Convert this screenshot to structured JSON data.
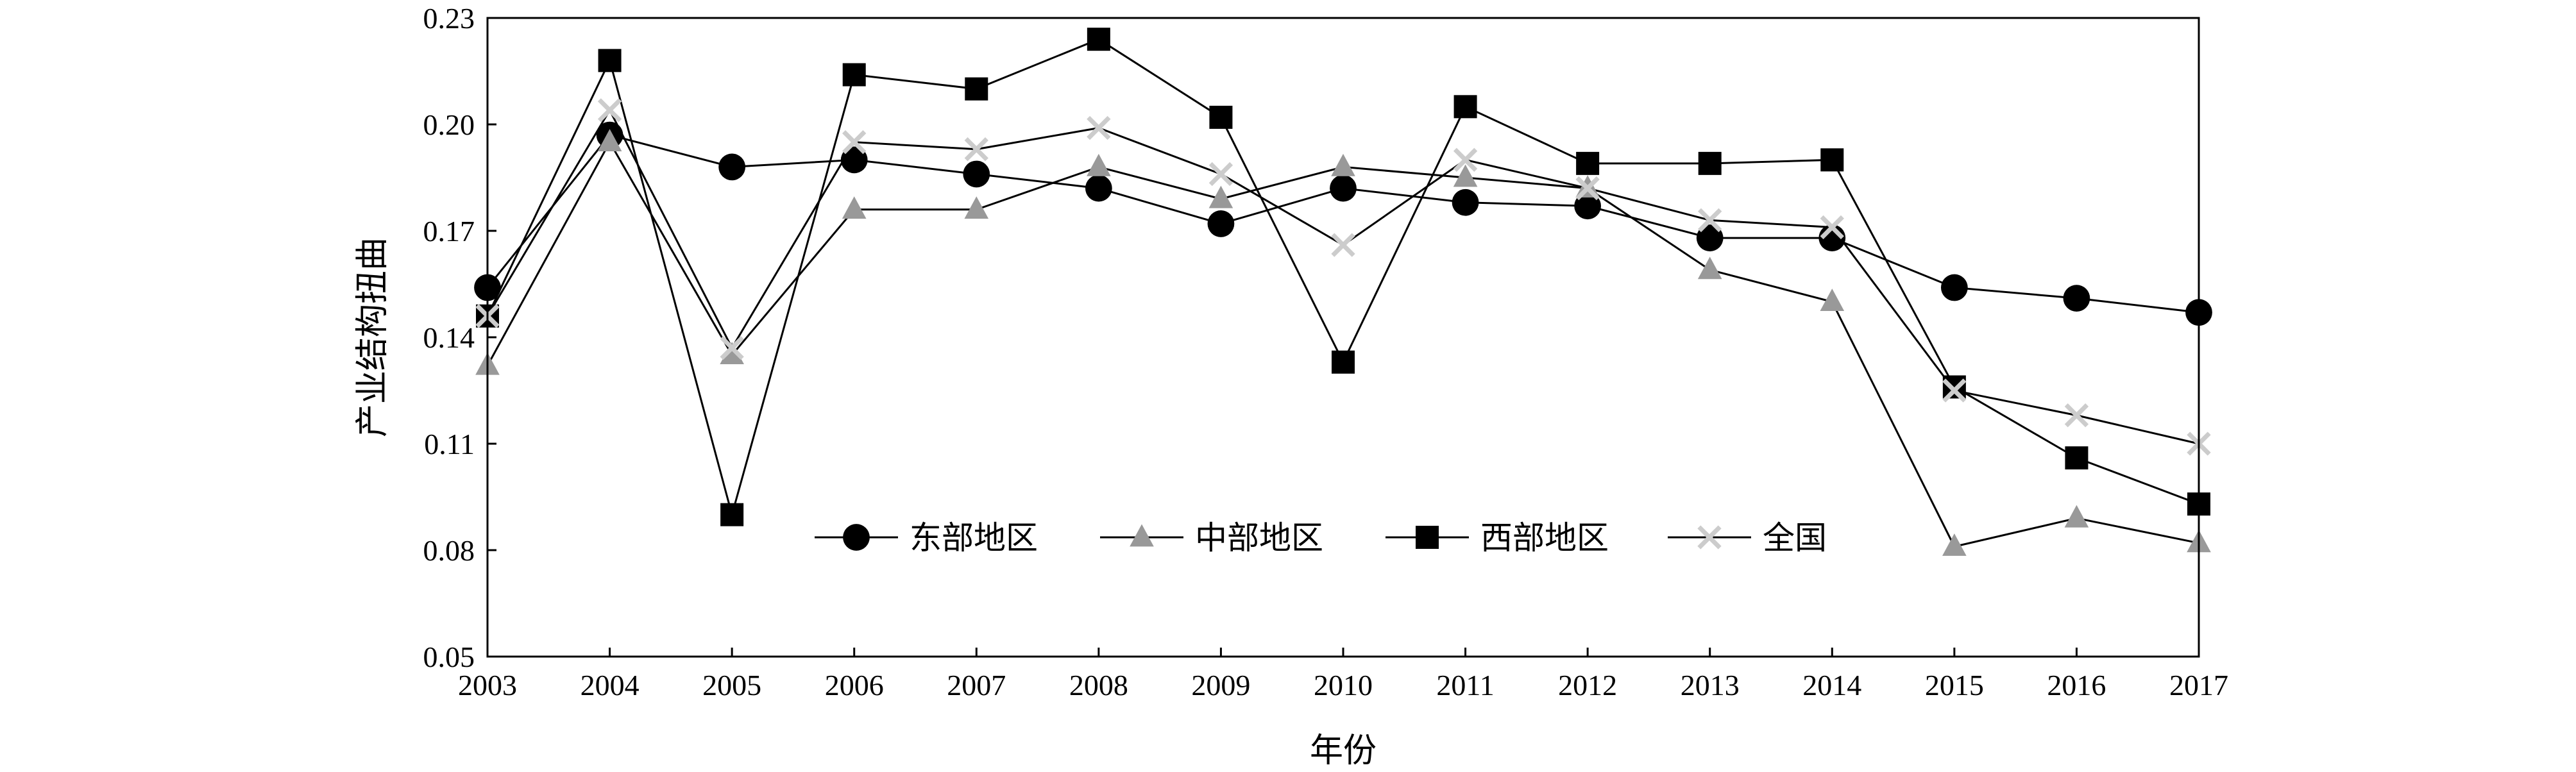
{
  "chart_data": {
    "type": "line",
    "title": "",
    "xlabel": "年份",
    "ylabel": "产业结构扭曲",
    "x": [
      "2003",
      "2004",
      "2005",
      "2006",
      "2007",
      "2008",
      "2009",
      "2010",
      "2011",
      "2012",
      "2013",
      "2014",
      "2015",
      "2016",
      "2017"
    ],
    "ylim": [
      0.05,
      0.23
    ],
    "yticks": [
      "0.05",
      "0.08",
      "0.11",
      "0.14",
      "0.17",
      "0.20",
      "0.23"
    ],
    "grid": false,
    "legend_position": "bottom-center inside",
    "series": [
      {
        "name": "东部地区",
        "marker": "circle",
        "color": "#000000",
        "values": [
          0.154,
          0.197,
          0.188,
          0.19,
          0.186,
          0.182,
          0.172,
          0.182,
          0.178,
          0.177,
          0.168,
          0.168,
          0.154,
          0.151,
          0.147
        ]
      },
      {
        "name": "中部地区",
        "marker": "triangle",
        "color": "#999999",
        "values": [
          0.132,
          0.195,
          0.135,
          0.176,
          0.176,
          0.188,
          0.179,
          0.188,
          0.185,
          0.182,
          0.159,
          0.15,
          0.081,
          0.089,
          0.082
        ]
      },
      {
        "name": "西部地区",
        "marker": "square",
        "color": "#000000",
        "values": [
          0.146,
          0.218,
          0.09,
          0.214,
          0.21,
          0.224,
          0.202,
          0.133,
          0.205,
          0.189,
          0.189,
          0.19,
          0.126,
          0.106,
          0.093
        ]
      },
      {
        "name": "全国",
        "marker": "x",
        "color": "#cccccc",
        "values": [
          0.146,
          0.204,
          0.137,
          0.195,
          0.193,
          0.199,
          0.186,
          0.166,
          0.19,
          0.182,
          0.173,
          0.171,
          0.125,
          0.118,
          0.11
        ]
      }
    ]
  }
}
